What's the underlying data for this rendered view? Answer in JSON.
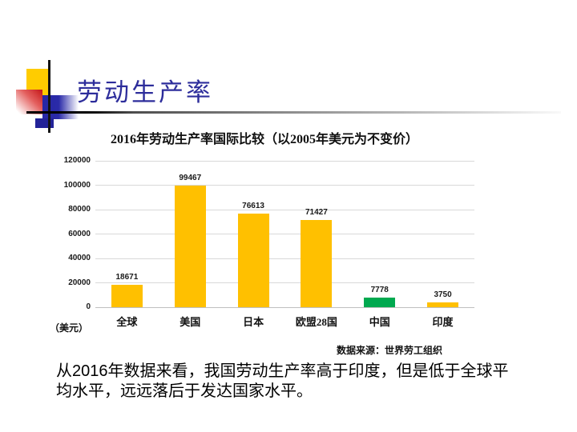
{
  "header": {
    "title": "劳动生产率"
  },
  "chart_data": {
    "type": "bar",
    "title": "2016年劳动生产率国际比较（以2005年美元为不变价）",
    "categories": [
      "全球",
      "美国",
      "日本",
      "欧盟28国",
      "中国",
      "印度"
    ],
    "values": [
      18671,
      99467,
      76613,
      71427,
      7778,
      3750
    ],
    "bar_colors": [
      "#FFC000",
      "#FFC000",
      "#FFC000",
      "#FFC000",
      "#00A94F",
      "#FFC000"
    ],
    "ylim": [
      0,
      120000
    ],
    "yticks": [
      0,
      20000,
      40000,
      60000,
      80000,
      100000,
      120000
    ],
    "unit_label": "（美元）",
    "source": "数据来源：世界劳工组织",
    "xlabel": "",
    "ylabel": "",
    "legend": "none",
    "grid": "horizontal",
    "data_labels": true
  },
  "body": {
    "text": "从2016年数据来看，我国劳动生产率高于印度，但是低于全球平均水平，远远落后于发达国家水平。"
  }
}
